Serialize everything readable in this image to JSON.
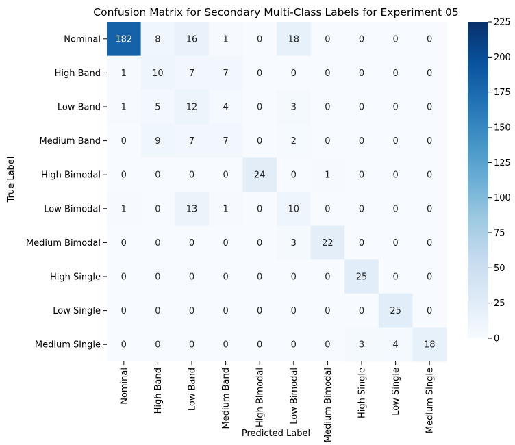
{
  "chart_data": {
    "type": "heatmap",
    "title": "Confusion Matrix for Secondary Multi-Class Labels for Experiment 05",
    "xlabel": "Predicted Label",
    "ylabel": "True Label",
    "x_categories": [
      "Nominal",
      "High Band",
      "Low Band",
      "Medium Band",
      "High Bimodal",
      "Low Bimodal",
      "Medium Bimodal",
      "High Single",
      "Low Single",
      "Medium Single"
    ],
    "y_categories": [
      "Nominal",
      "High Band",
      "Low Band",
      "Medium Band",
      "High Bimodal",
      "Low Bimodal",
      "Medium Bimodal",
      "High Single",
      "Low Single",
      "Medium Single"
    ],
    "matrix": [
      [
        182,
        8,
        16,
        1,
        0,
        18,
        0,
        0,
        0,
        0
      ],
      [
        1,
        10,
        7,
        7,
        0,
        0,
        0,
        0,
        0,
        0
      ],
      [
        1,
        5,
        12,
        4,
        0,
        3,
        0,
        0,
        0,
        0
      ],
      [
        0,
        9,
        7,
        7,
        0,
        2,
        0,
        0,
        0,
        0
      ],
      [
        0,
        0,
        0,
        0,
        24,
        0,
        1,
        0,
        0,
        0
      ],
      [
        1,
        0,
        13,
        1,
        0,
        10,
        0,
        0,
        0,
        0
      ],
      [
        0,
        0,
        0,
        0,
        0,
        3,
        22,
        0,
        0,
        0
      ],
      [
        0,
        0,
        0,
        0,
        0,
        0,
        0,
        25,
        0,
        0
      ],
      [
        0,
        0,
        0,
        0,
        0,
        0,
        0,
        0,
        25,
        0
      ],
      [
        0,
        0,
        0,
        0,
        0,
        0,
        0,
        3,
        4,
        18
      ]
    ],
    "colorbar": {
      "min": 0,
      "max": 225,
      "ticks": [
        0,
        25,
        50,
        75,
        100,
        125,
        150,
        175,
        200,
        225
      ],
      "colormap": "Blues"
    }
  }
}
